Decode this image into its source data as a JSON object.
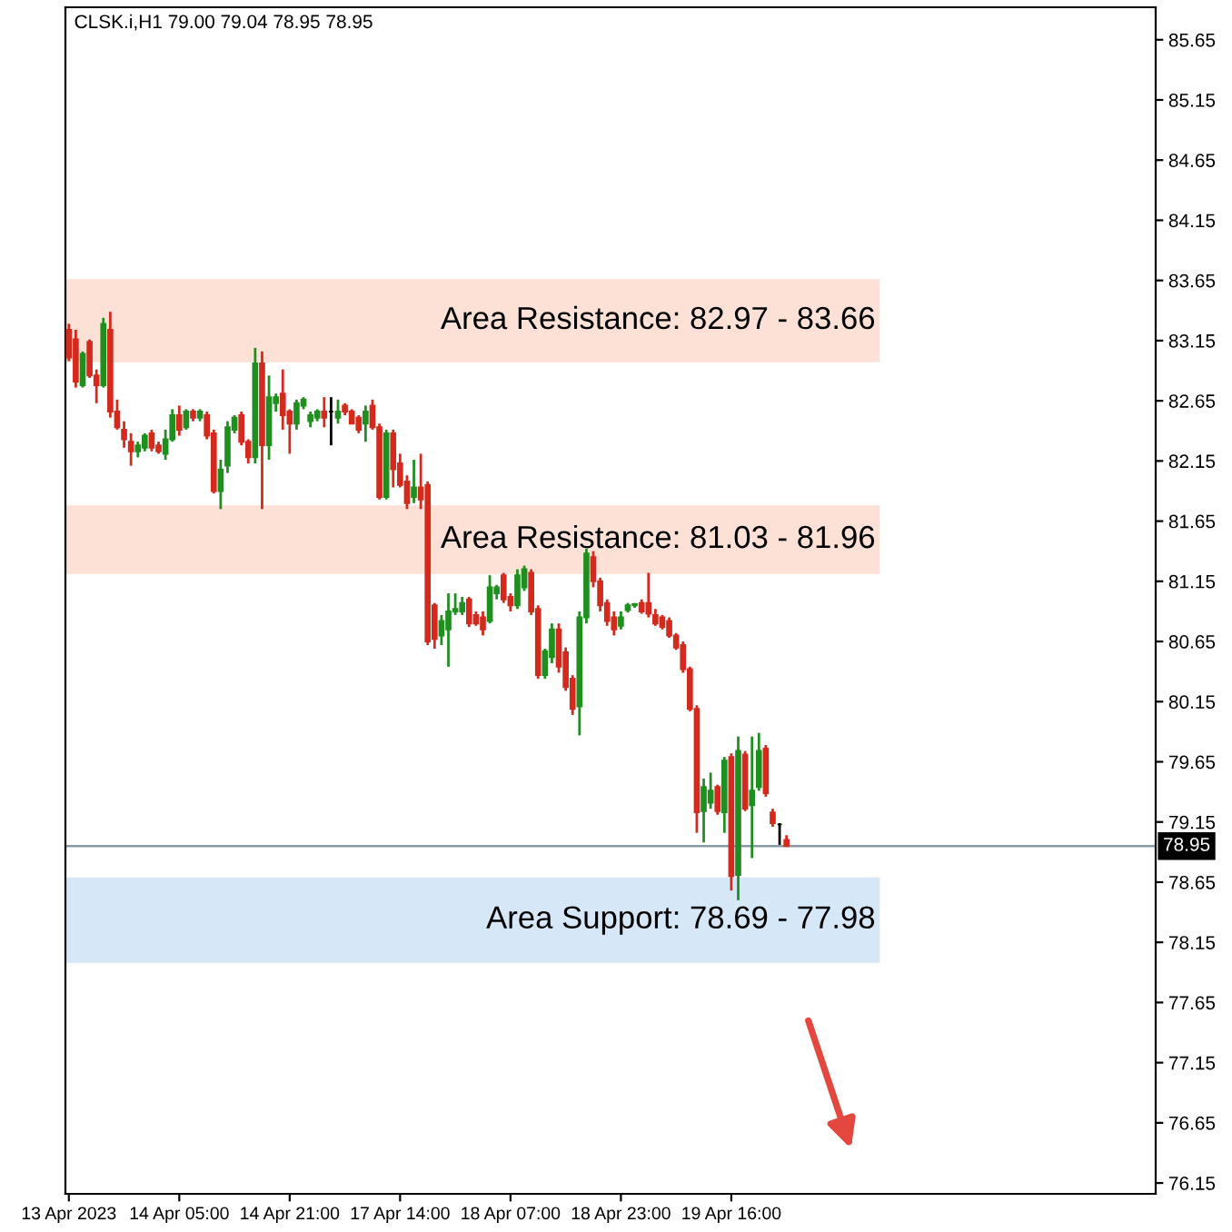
{
  "chart_data": {
    "type": "candlestick",
    "title": "CLSK.i,H1 79.00 79.04 78.95 78.95",
    "categories": [
      "13 Apr 2023",
      null,
      null,
      null,
      null,
      null,
      null,
      null,
      null,
      null,
      null,
      null,
      null,
      null,
      null,
      null,
      "14 Apr 05:00",
      null,
      null,
      null,
      null,
      null,
      null,
      null,
      null,
      null,
      null,
      null,
      null,
      null,
      null,
      null,
      "14 Apr 21:00",
      null,
      null,
      null,
      null,
      null,
      null,
      null,
      null,
      null,
      null,
      null,
      null,
      null,
      null,
      null,
      "17 Apr 14:00",
      null,
      null,
      null,
      null,
      null,
      null,
      null,
      null,
      null,
      null,
      null,
      null,
      null,
      null,
      null,
      "18 Apr 07:00",
      null,
      null,
      null,
      null,
      null,
      null,
      null,
      null,
      null,
      null,
      null,
      null,
      null,
      null,
      null,
      "18 Apr 23:00",
      null,
      null,
      null,
      null,
      null,
      null,
      null,
      null,
      null,
      null,
      null,
      null,
      null,
      null,
      null,
      "19 Apr 16:00",
      null,
      null,
      null,
      null,
      null,
      null,
      null,
      null,
      null,
      null,
      null,
      null,
      null,
      null,
      null,
      null,
      null,
      null,
      null,
      null,
      null,
      null,
      null,
      null,
      null,
      null,
      null,
      null,
      null,
      null,
      null,
      null,
      null,
      null,
      null,
      null,
      null,
      null,
      null,
      null,
      null,
      null,
      null,
      null,
      null,
      null,
      null,
      null,
      null,
      null,
      null,
      null,
      null,
      null,
      null,
      null,
      null,
      null,
      null,
      null,
      null
    ],
    "ohlc": [
      [
        83.24,
        83.29,
        82.98,
        83.01
      ],
      [
        83.16,
        83.24,
        82.76,
        82.81
      ],
      [
        82.78,
        83.06,
        82.76,
        83.04
      ],
      [
        83.14,
        83.16,
        82.84,
        82.86
      ],
      [
        82.86,
        82.91,
        82.63,
        82.78
      ],
      [
        82.78,
        83.34,
        82.76,
        83.29
      ],
      [
        83.24,
        83.39,
        82.51,
        82.56
      ],
      [
        82.56,
        82.66,
        82.41,
        82.43
      ],
      [
        82.41,
        82.48,
        82.26,
        82.33
      ],
      [
        82.31,
        82.38,
        82.11,
        82.23
      ],
      [
        82.23,
        82.31,
        82.18,
        82.28
      ],
      [
        82.26,
        82.38,
        82.23,
        82.36
      ],
      [
        82.38,
        82.41,
        82.23,
        82.26
      ],
      [
        82.28,
        82.31,
        82.21,
        82.23
      ],
      [
        82.21,
        82.41,
        82.16,
        82.33
      ],
      [
        82.33,
        82.58,
        82.31,
        82.53
      ],
      [
        82.53,
        82.61,
        82.36,
        82.41
      ],
      [
        82.43,
        82.58,
        82.41,
        82.56
      ],
      [
        82.56,
        82.58,
        82.48,
        82.51
      ],
      [
        82.51,
        82.58,
        82.48,
        82.56
      ],
      [
        82.53,
        82.56,
        82.33,
        82.36
      ],
      [
        82.38,
        82.41,
        81.88,
        81.9
      ],
      [
        81.9,
        82.16,
        81.75,
        82.08
      ],
      [
        82.11,
        82.48,
        82.05,
        82.43
      ],
      [
        82.41,
        82.53,
        82.38,
        82.51
      ],
      [
        82.53,
        82.56,
        82.28,
        82.31
      ],
      [
        82.31,
        82.33,
        82.13,
        82.18
      ],
      [
        82.18,
        83.09,
        82.13,
        82.96
      ],
      [
        82.96,
        83.06,
        81.75,
        82.28
      ],
      [
        82.28,
        82.86,
        82.16,
        82.68
      ],
      [
        82.63,
        82.71,
        82.56,
        82.68
      ],
      [
        82.71,
        82.91,
        82.41,
        82.53
      ],
      [
        82.56,
        82.58,
        82.21,
        82.46
      ],
      [
        82.46,
        82.66,
        82.41,
        82.63
      ],
      [
        82.61,
        82.68,
        82.58,
        82.66
      ],
      [
        82.48,
        82.56,
        82.43,
        82.53
      ],
      [
        82.51,
        82.58,
        82.48,
        82.56
      ],
      [
        82.56,
        82.68,
        82.43,
        82.51
      ],
      [
        82.56,
        82.68,
        82.28,
        82.56
      ],
      [
        82.51,
        82.66,
        82.46,
        82.56
      ],
      [
        82.61,
        82.63,
        82.53,
        82.56
      ],
      [
        82.56,
        82.58,
        82.46,
        82.46
      ],
      [
        82.51,
        82.53,
        82.38,
        82.41
      ],
      [
        82.46,
        82.61,
        82.31,
        82.56
      ],
      [
        82.61,
        82.66,
        82.41,
        82.43
      ],
      [
        82.43,
        82.46,
        81.83,
        81.85
      ],
      [
        81.85,
        82.41,
        81.83,
        82.38
      ],
      [
        82.38,
        82.41,
        81.93,
        82.08
      ],
      [
        82.13,
        82.21,
        81.93,
        81.95
      ],
      [
        81.98,
        82.03,
        81.75,
        81.8
      ],
      [
        81.85,
        82.16,
        81.8,
        81.93
      ],
      [
        81.93,
        82.21,
        81.75,
        81.83
      ],
      [
        81.95,
        81.98,
        80.62,
        80.65
      ],
      [
        80.95,
        80.97,
        80.59,
        80.67
      ],
      [
        80.7,
        80.87,
        80.62,
        80.82
      ],
      [
        80.75,
        81.05,
        80.44,
        80.9
      ],
      [
        80.9,
        81.05,
        80.87,
        80.92
      ],
      [
        80.9,
        81.02,
        80.87,
        80.97
      ],
      [
        81.0,
        81.02,
        80.77,
        80.8
      ],
      [
        80.87,
        80.9,
        80.78,
        80.8
      ],
      [
        80.85,
        80.9,
        80.7,
        80.75
      ],
      [
        80.82,
        81.2,
        80.8,
        81.1
      ],
      [
        81.05,
        81.12,
        81.0,
        81.1
      ],
      [
        81.2,
        81.22,
        80.97,
        81.0
      ],
      [
        81.02,
        81.05,
        80.9,
        80.95
      ],
      [
        80.95,
        81.25,
        80.92,
        81.2
      ],
      [
        81.1,
        81.28,
        81.07,
        81.25
      ],
      [
        81.22,
        81.25,
        80.87,
        80.9
      ],
      [
        80.92,
        80.95,
        80.34,
        80.37
      ],
      [
        80.37,
        80.59,
        80.34,
        80.57
      ],
      [
        80.52,
        80.8,
        80.47,
        80.75
      ],
      [
        80.75,
        80.8,
        80.39,
        80.44
      ],
      [
        80.56,
        80.6,
        80.24,
        80.27
      ],
      [
        80.34,
        80.37,
        80.04,
        80.09
      ],
      [
        80.11,
        80.9,
        79.87,
        80.85
      ],
      [
        80.85,
        81.42,
        80.8,
        81.38
      ],
      [
        81.35,
        81.4,
        81.1,
        81.15
      ],
      [
        81.15,
        81.18,
        80.9,
        80.95
      ],
      [
        80.97,
        81.0,
        80.78,
        80.82
      ],
      [
        80.85,
        80.9,
        80.7,
        80.75
      ],
      [
        80.78,
        80.9,
        80.75,
        80.85
      ],
      [
        80.91,
        80.97,
        80.89,
        80.95
      ],
      [
        80.95,
        80.97,
        80.93,
        80.96
      ],
      [
        80.97,
        81.0,
        80.88,
        80.9
      ],
      [
        80.97,
        81.22,
        80.85,
        80.88
      ],
      [
        80.87,
        80.92,
        80.78,
        80.8
      ],
      [
        80.85,
        80.87,
        80.75,
        80.77
      ],
      [
        80.82,
        80.85,
        80.68,
        80.7
      ],
      [
        80.7,
        80.72,
        80.58,
        80.6
      ],
      [
        80.62,
        80.65,
        80.39,
        80.42
      ],
      [
        80.42,
        80.44,
        80.07,
        80.09
      ],
      [
        80.09,
        80.12,
        79.06,
        79.23
      ],
      [
        79.24,
        79.51,
        78.98,
        79.44
      ],
      [
        79.31,
        79.56,
        79.26,
        79.41
      ],
      [
        79.44,
        79.46,
        79.21,
        79.24
      ],
      [
        79.23,
        79.69,
        79.06,
        79.66
      ],
      [
        79.69,
        79.72,
        78.58,
        78.7
      ],
      [
        78.71,
        79.86,
        78.5,
        79.74
      ],
      [
        79.71,
        79.74,
        79.24,
        79.26
      ],
      [
        79.29,
        79.86,
        78.85,
        79.41
      ],
      [
        79.44,
        79.89,
        79.41,
        79.74
      ],
      [
        79.76,
        79.79,
        79.36,
        79.39
      ],
      [
        79.23,
        79.26,
        79.11,
        79.14
      ],
      [
        79.13,
        79.14,
        78.96,
        79.13
      ],
      [
        79.0,
        79.04,
        78.95,
        78.95
      ],
      null,
      null,
      null,
      null,
      null,
      null,
      null,
      null,
      null,
      null,
      null,
      null,
      null,
      null,
      null,
      null,
      null,
      null,
      null,
      null,
      null,
      null,
      null,
      null,
      null,
      null,
      null,
      null,
      null,
      null,
      null,
      null,
      null,
      null,
      null,
      null,
      null,
      null,
      null,
      null,
      null,
      null,
      null,
      null,
      null,
      null,
      null,
      null,
      null,
      null,
      null,
      null,
      null
    ],
    "colors": [
      "#d42a1e",
      "#d42a1e",
      "#1f8f1f",
      "#d42a1e",
      "#d42a1e",
      "#1f8f1f",
      "#d42a1e",
      "#d42a1e",
      "#d42a1e",
      "#d42a1e",
      "#1f8f1f",
      "#1f8f1f",
      "#d42a1e",
      "#d42a1e",
      "#1f8f1f",
      "#1f8f1f",
      "#d42a1e",
      "#1f8f1f",
      "#d42a1e",
      "#1f8f1f",
      "#d42a1e",
      "#d42a1e",
      "#1f8f1f",
      "#1f8f1f",
      "#1f8f1f",
      "#d42a1e",
      "#d42a1e",
      "#1f8f1f",
      "#d42a1e",
      "#1f8f1f",
      "#1f8f1f",
      "#d42a1e",
      "#d42a1e",
      "#1f8f1f",
      "#1f8f1f",
      "#1f8f1f",
      "#1f8f1f",
      "#d42a1e",
      "#000000",
      "#1f8f1f",
      "#d42a1e",
      "#d42a1e",
      "#d42a1e",
      "#1f8f1f",
      "#d42a1e",
      "#d42a1e",
      "#1f8f1f",
      "#d42a1e",
      "#d42a1e",
      "#d42a1e",
      "#1f8f1f",
      "#d42a1e",
      "#d42a1e",
      "#d42a1e",
      "#1f8f1f",
      "#1f8f1f",
      "#1f8f1f",
      "#1f8f1f",
      "#d42a1e",
      "#d42a1e",
      "#d42a1e",
      "#1f8f1f",
      "#1f8f1f",
      "#d42a1e",
      "#d42a1e",
      "#1f8f1f",
      "#1f8f1f",
      "#d42a1e",
      "#d42a1e",
      "#1f8f1f",
      "#1f8f1f",
      "#d42a1e",
      "#d42a1e",
      "#d42a1e",
      "#1f8f1f",
      "#1f8f1f",
      "#d42a1e",
      "#d42a1e",
      "#d42a1e",
      "#d42a1e",
      "#1f8f1f",
      "#1f8f1f",
      "#1f8f1f",
      "#d42a1e",
      "#d42a1e",
      "#d42a1e",
      "#d42a1e",
      "#d42a1e",
      "#d42a1e",
      "#d42a1e",
      "#d42a1e",
      "#d42a1e",
      "#1f8f1f",
      "#1f8f1f",
      "#d42a1e",
      "#1f8f1f",
      "#d42a1e",
      "#1f8f1f",
      "#d42a1e",
      "#1f8f1f",
      "#1f8f1f",
      "#d42a1e",
      "#d42a1e",
      "#000000",
      "#d42a1e",
      null,
      null,
      null,
      null,
      null,
      null,
      null,
      null,
      null,
      null,
      null,
      null,
      null,
      null,
      null,
      null,
      null,
      null,
      null,
      null,
      null,
      null,
      null,
      null,
      null,
      null,
      null,
      null,
      null,
      null,
      null,
      null,
      null,
      null,
      null,
      null,
      null,
      null,
      null,
      null,
      null,
      null,
      null,
      null,
      null,
      null,
      null,
      null,
      null,
      null,
      null,
      null,
      null
    ],
    "ylim": [
      76.06,
      85.92
    ],
    "yticks": [
      76.15,
      76.65,
      77.15,
      77.65,
      78.15,
      78.65,
      79.15,
      79.65,
      80.15,
      80.65,
      81.15,
      81.65,
      82.15,
      82.65,
      83.15,
      83.65,
      84.15,
      84.65,
      85.15,
      85.65
    ],
    "ref_lines": [
      {
        "axis": "y",
        "value": 78.95,
        "label": "78.95",
        "color": "#8a99a6",
        "line_style": "solid"
      }
    ],
    "bands": [
      {
        "axis": "y",
        "from": 82.97,
        "to": 83.66,
        "label": "Area Resistance: 82.97 - 83.66",
        "color": "#fde1d6"
      },
      {
        "axis": "y",
        "from": 81.21,
        "to": 81.78,
        "label": "Area Resistance: 81.03 - 81.96",
        "color": "#fde1d6"
      },
      {
        "axis": "y",
        "from": 77.98,
        "to": 78.69,
        "label": "Area Support: 78.69 - 77.98",
        "color": "#d6e8f8"
      }
    ]
  }
}
